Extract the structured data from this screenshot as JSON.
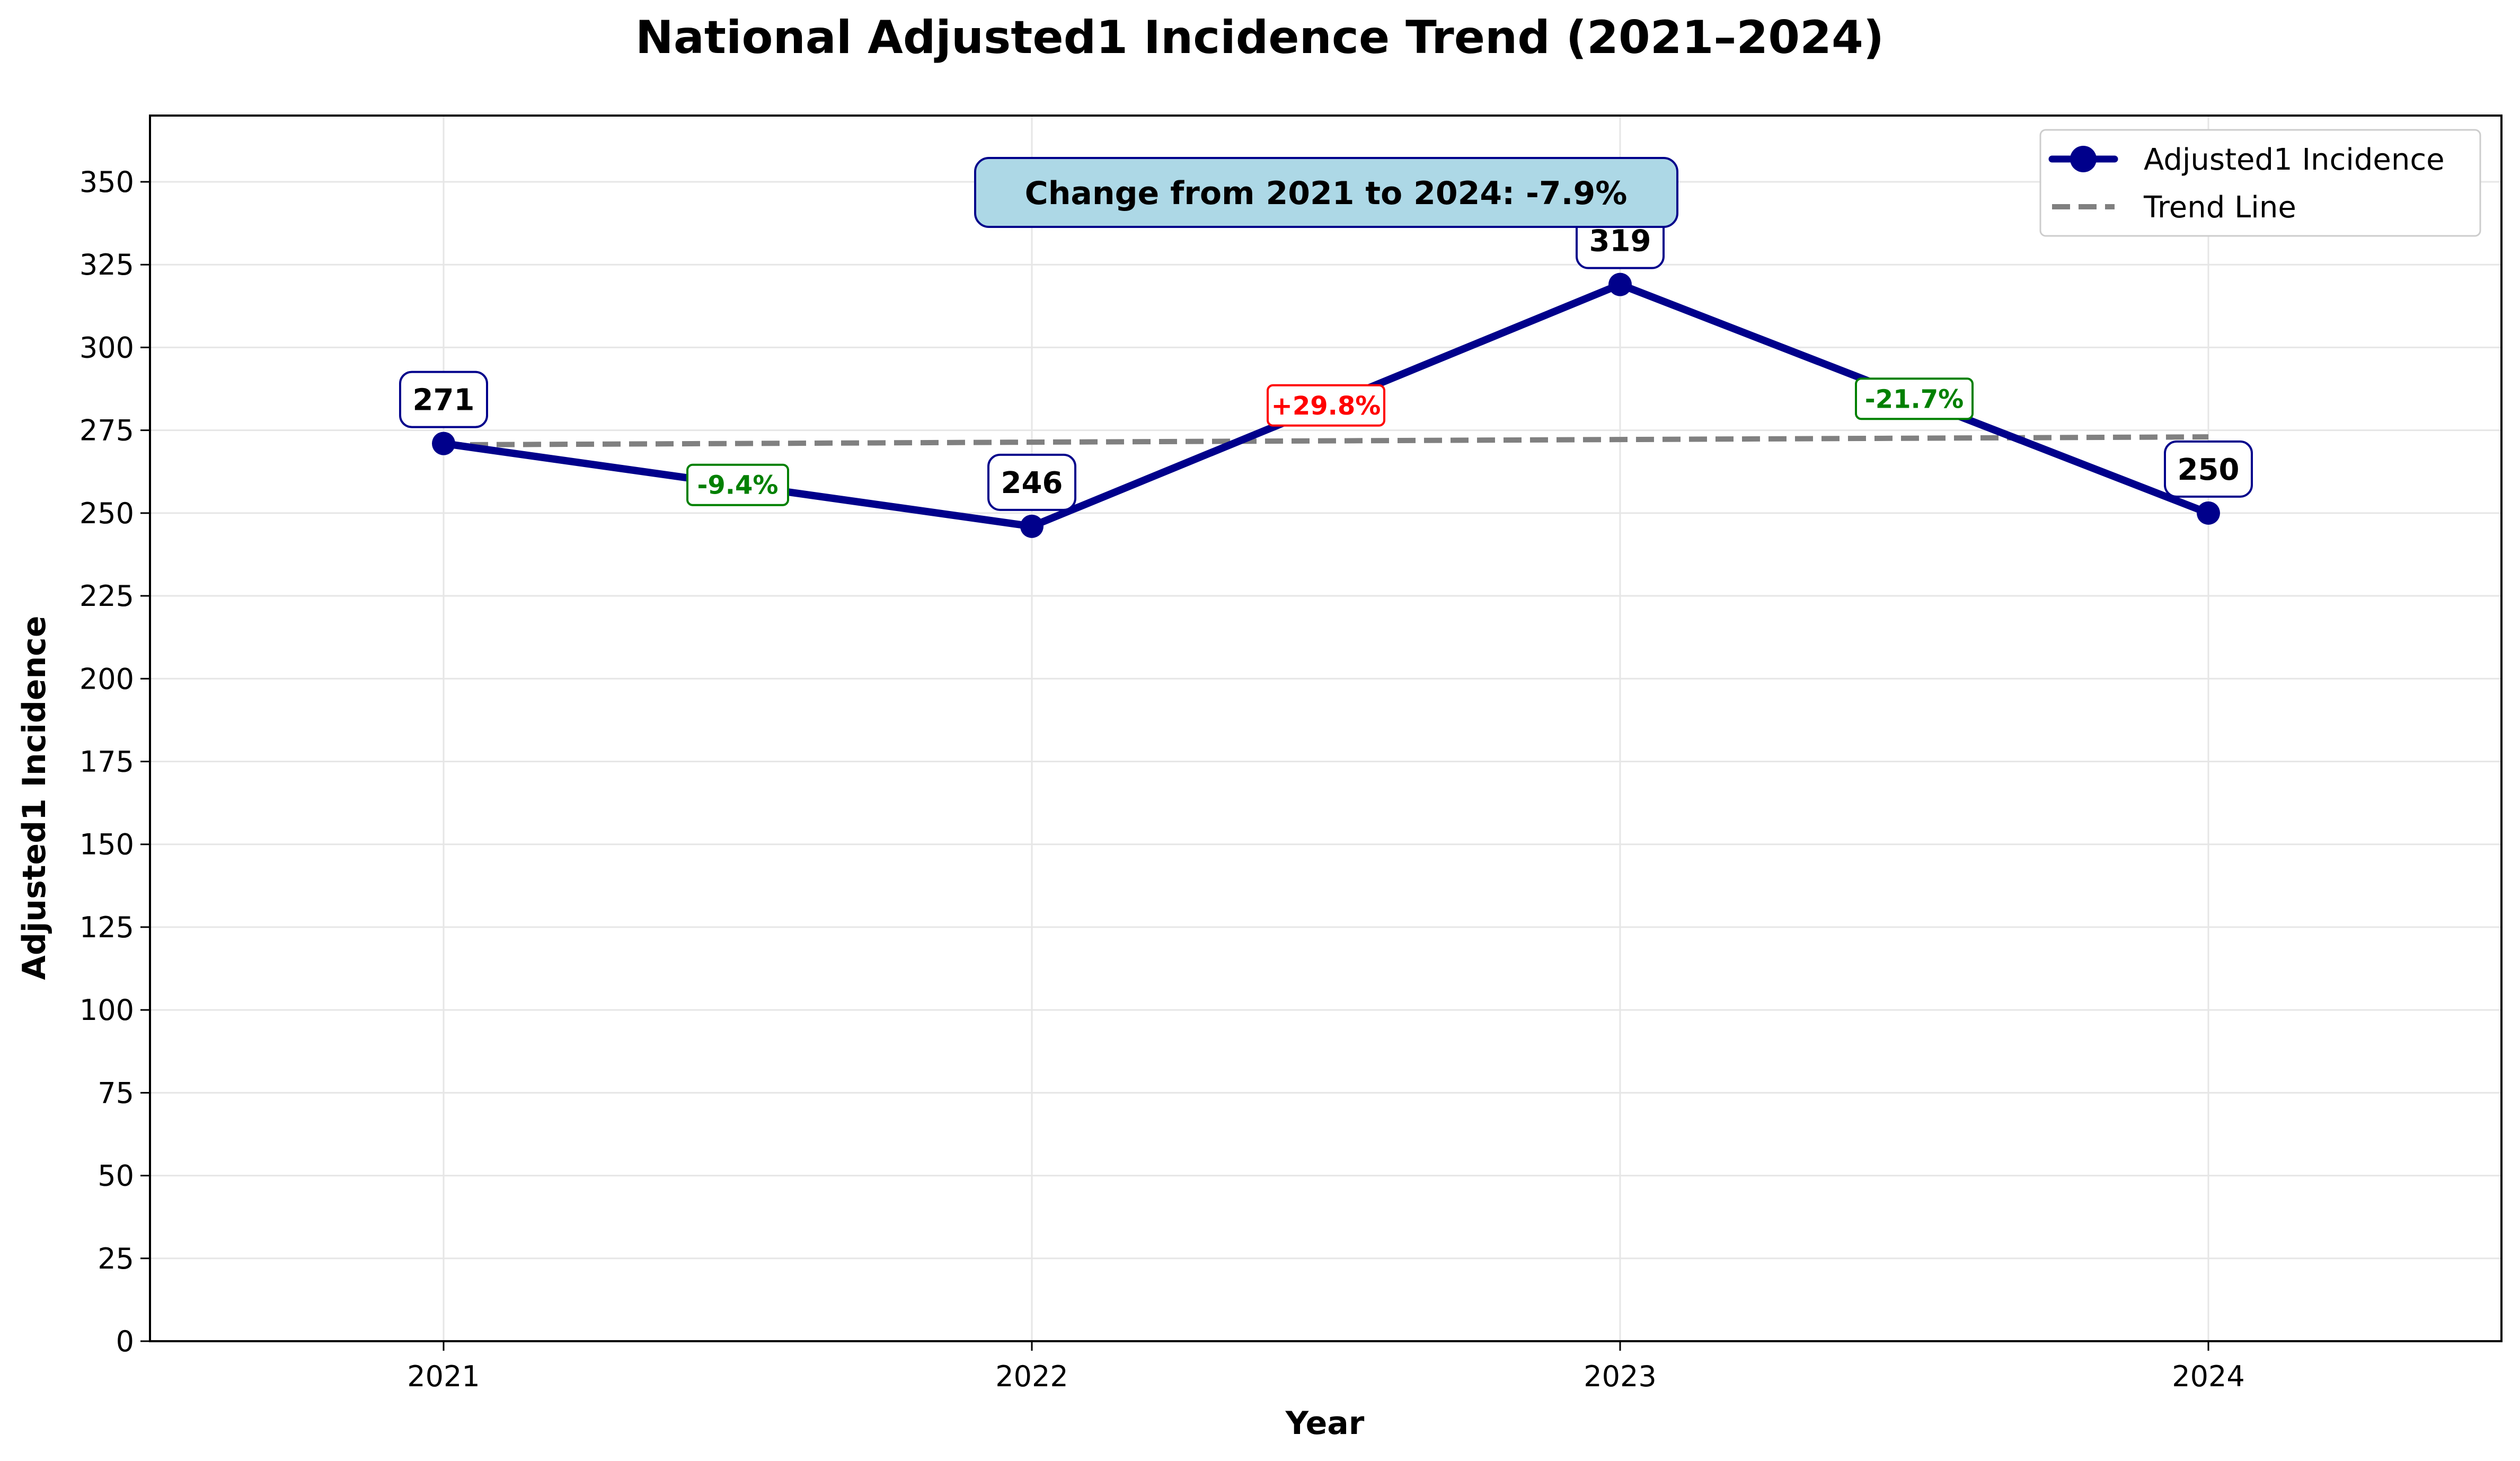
{
  "chart_data": {
    "type": "line",
    "title": "National Adjusted1 Incidence Trend (2021–2024)",
    "xlabel": "Year",
    "ylabel": "Adjusted1 Incidence",
    "categories": [
      "2021",
      "2022",
      "2023",
      "2024"
    ],
    "series": [
      {
        "name": "Adjusted1 Incidence",
        "values": [
          271,
          246,
          319,
          250
        ],
        "value_labels": [
          "271",
          "246",
          "319",
          "250"
        ],
        "color": "#00008B"
      }
    ],
    "trend_line": {
      "name": "Trend Line",
      "values": [
        270.6,
        271.4,
        272.2,
        273.0
      ],
      "color": "#808080",
      "style": "dashed"
    },
    "changes": [
      {
        "label": "-9.4%",
        "value": -9.4,
        "color": "#008000"
      },
      {
        "label": "+29.8%",
        "value": 29.8,
        "color": "#FF0000"
      },
      {
        "label": "-21.7%",
        "value": -21.7,
        "color": "#008000"
      }
    ],
    "summary_box": {
      "text": "Change from 2021 to 2024: -7.9%",
      "fill": "#ADD8E6",
      "border": "#00008B"
    },
    "ylim": [
      0,
      370
    ],
    "yticks": [
      0,
      25,
      50,
      75,
      100,
      125,
      150,
      175,
      200,
      225,
      250,
      275,
      300,
      325,
      350
    ],
    "grid": true,
    "legend_position": "top-right"
  }
}
